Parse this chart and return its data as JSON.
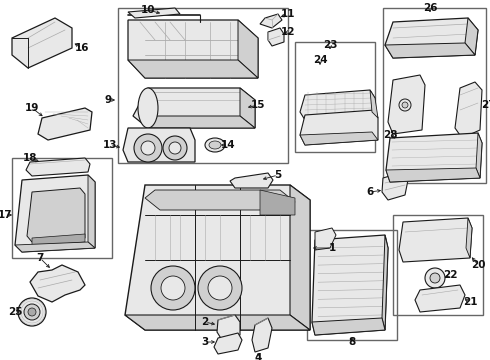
{
  "bg_color": "#ffffff",
  "border_color": "#666666",
  "line_color": "#1a1a1a",
  "text_color": "#111111",
  "gray_fill": "#e8e8e8",
  "gray_mid": "#d0d0d0",
  "gray_dark": "#aaaaaa"
}
